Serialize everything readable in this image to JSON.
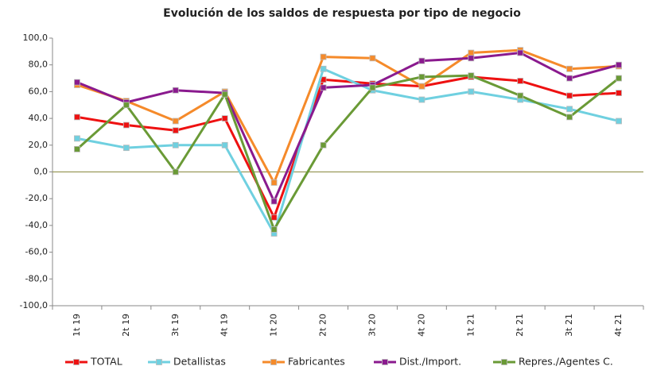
{
  "chart_data": {
    "type": "line",
    "title": "Evolución de los saldos de respuesta por tipo de negocio",
    "categories": [
      "1t 19",
      "2t 19",
      "3t 19",
      "4t 19",
      "1t 20",
      "2t 20",
      "3t 20",
      "4t 20",
      "1t 21",
      "2t 21",
      "3t 21",
      "4t 21"
    ],
    "series": [
      {
        "name": "TOTAL",
        "color": "#ee1111",
        "values": [
          41,
          35,
          31,
          40,
          -34,
          69,
          66,
          64,
          71,
          68,
          57,
          59
        ]
      },
      {
        "name": "Detallistas",
        "color": "#6fd0e0",
        "values": [
          25,
          18,
          20,
          20,
          -46,
          77,
          61,
          54,
          60,
          54,
          47,
          38
        ]
      },
      {
        "name": "Fabricantes",
        "color": "#f58a2a",
        "values": [
          65,
          53,
          38,
          60,
          -8,
          86,
          85,
          64,
          89,
          91,
          77,
          79
        ]
      },
      {
        "name": "Dist./Import.",
        "color": "#8a1a8e",
        "values": [
          67,
          52,
          61,
          59,
          -22,
          63,
          65,
          83,
          85,
          89,
          70,
          80
        ]
      },
      {
        "name": "Repres./Agentes C.",
        "color": "#6a9a36",
        "values": [
          17,
          50,
          0,
          58,
          -43,
          20,
          63,
          71,
          72,
          57,
          41,
          70
        ]
      }
    ],
    "ylim": [
      -100,
      100
    ],
    "yticks": [
      {
        "value": 100,
        "label": "100,0"
      },
      {
        "value": 80,
        "label": "80,0"
      },
      {
        "value": 60,
        "label": "60,0"
      },
      {
        "value": 40,
        "label": "40,0"
      },
      {
        "value": 20,
        "label": "20,0"
      },
      {
        "value": 0,
        "label": "0,0"
      },
      {
        "value": -20,
        "label": "-20,0"
      },
      {
        "value": -40,
        "label": "-40,0"
      },
      {
        "value": -60,
        "label": "-60,0"
      },
      {
        "value": -80,
        "label": "-80,0"
      },
      {
        "value": -100,
        "label": "-100,0"
      }
    ],
    "grid": false,
    "legend": "bottom"
  }
}
